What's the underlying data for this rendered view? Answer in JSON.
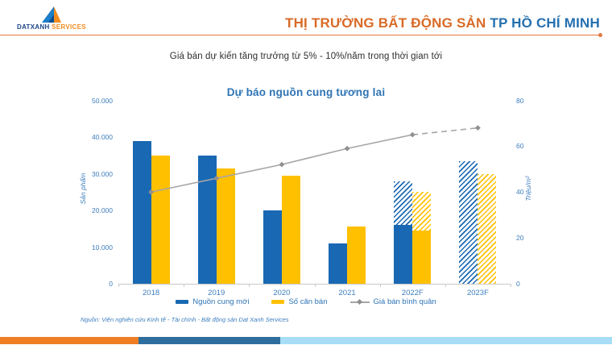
{
  "header": {
    "logo_brand": "DATXANH",
    "logo_suffix": "SERVICES",
    "title_orange": "THỊ TRƯỜNG BẤT ĐỘNG SẢN",
    "title_blue": " TP HỒ CHÍ MINH"
  },
  "subtitle": "Giá bán dự kiến tăng trưởng từ 5% - 10%/năm trong thời gian tới",
  "chart_data": {
    "type": "bar+line",
    "title": "Dự báo nguồn cung tương lai",
    "categories": [
      "2018",
      "2019",
      "2020",
      "2021",
      "2022F",
      "2023F"
    ],
    "series": [
      {
        "name": "Nguồn cung mới",
        "type": "bar",
        "color": "#1968B3",
        "values": [
          39000,
          35000,
          20000,
          11000,
          28000,
          33500
        ],
        "solid_values": [
          39000,
          35000,
          20000,
          11000,
          16000,
          0
        ]
      },
      {
        "name": "Số căn bán",
        "type": "bar",
        "color": "#FFC000",
        "values": [
          35000,
          31500,
          29500,
          15500,
          25000,
          30000
        ],
        "solid_values": [
          35000,
          31500,
          29500,
          15500,
          14500,
          0
        ]
      },
      {
        "name": "Giá bán bình quân",
        "type": "line",
        "color": "#A6A6A6",
        "marker_color": "#8F8F8F",
        "values": [
          40,
          46,
          52,
          59,
          65,
          68
        ],
        "dashed_from_index": 4
      }
    ],
    "left_axis": {
      "title": "Sản phẩm",
      "tick_labels": [
        "0",
        "10.000",
        "20.000",
        "30.000",
        "40.000",
        "50.000"
      ],
      "max": 50000
    },
    "right_axis": {
      "title": "Triệu/m²",
      "tick_labels": [
        "0",
        "20",
        "40",
        "60",
        "80"
      ],
      "max": 80
    },
    "grid": false,
    "legend_position": "bottom",
    "forecast_note_hatched": [
      "2022F",
      "2023F"
    ]
  },
  "source": "Nguồn: Viện nghiên cứu Kinh tế - Tài chính - Bất động sản Dat Xanh Services",
  "colors": {
    "accent_orange": "#D96A26",
    "accent_blue": "#2570B0",
    "axis_text_blue": "#3D7EBE",
    "bar_blue": "#1968B3",
    "bar_yellow": "#FFC000",
    "line_gray": "#A6A6A6",
    "footer_orange": "#EF7D23",
    "footer_steel_blue": "#2E6E9E",
    "footer_light_blue": "#A7DDF6"
  }
}
